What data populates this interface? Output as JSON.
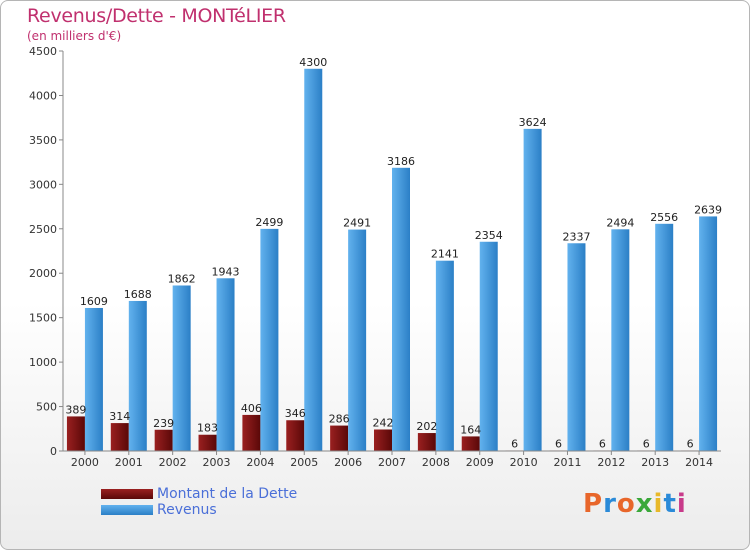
{
  "title": "Revenus/Dette - MONTéLIER",
  "subtitle": "(en milliers d'€)",
  "logo": {
    "text": "Proxiti",
    "colors": [
      "#e8662a",
      "#2a8ad8",
      "#e8662a",
      "#3aa83a",
      "#e8b82a",
      "#2a8ad8",
      "#c83a8a"
    ]
  },
  "colors": {
    "dette": "#7a1010",
    "revenus": "#3a95dd",
    "title": "#c0306e",
    "legend_text": "#4a6fd8"
  },
  "chart_data": {
    "type": "bar",
    "title": "Revenus/Dette - MONTéLIER",
    "subtitle": "(en milliers d'€)",
    "categories": [
      "2000",
      "2001",
      "2002",
      "2003",
      "2004",
      "2005",
      "2006",
      "2007",
      "2008",
      "2009",
      "2010",
      "2011",
      "2012",
      "2013",
      "2014"
    ],
    "series": [
      {
        "name": "Montant de la Dette",
        "values": [
          389,
          314,
          239,
          183,
          406,
          346,
          286,
          242,
          202,
          164,
          6,
          6,
          6,
          6,
          6
        ],
        "labels": [
          "389",
          "314",
          "239",
          "183",
          "406",
          "346",
          "286",
          "242",
          "202",
          "164",
          "6",
          "6",
          "6",
          "6",
          "6"
        ]
      },
      {
        "name": "Revenus",
        "values": [
          1609,
          1688,
          1862,
          1943,
          2499,
          4300,
          2491,
          3186,
          2141,
          2354,
          3624,
          2337,
          2494,
          2556,
          2639
        ],
        "labels": [
          "1609",
          "1688",
          "1862",
          "1943",
          "2499",
          "4300",
          "2491",
          "3186",
          "2141",
          "2354",
          "3624",
          "2337",
          "2494",
          "2556",
          "2639"
        ]
      }
    ],
    "ylim": [
      0,
      4500
    ],
    "yticks": [
      "0",
      "500",
      "1000",
      "1500",
      "2000",
      "2500",
      "3000",
      "3500",
      "4000",
      "4500"
    ],
    "grid": false,
    "legend_position": "bottom-left"
  },
  "legend": [
    {
      "label": "Montant de la Dette"
    },
    {
      "label": "Revenus"
    }
  ]
}
